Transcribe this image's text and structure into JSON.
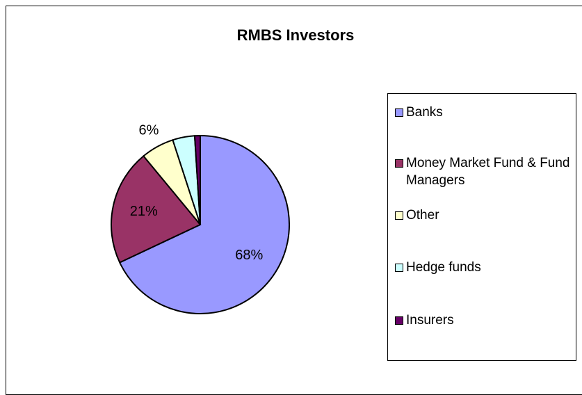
{
  "chart_data": {
    "type": "pie",
    "title": "RMBS Investors",
    "categories": [
      "Banks",
      "Money Market Fund & Fund Managers",
      "Other",
      "Hedge funds",
      "Insurers"
    ],
    "values": [
      68,
      21,
      6,
      4,
      1
    ],
    "value_labels": [
      "68%",
      "21%",
      "6%",
      null,
      null
    ],
    "colors": [
      "#9999ff",
      "#993366",
      "#ffffcc",
      "#ccffff",
      "#660066"
    ],
    "legend": "right"
  }
}
